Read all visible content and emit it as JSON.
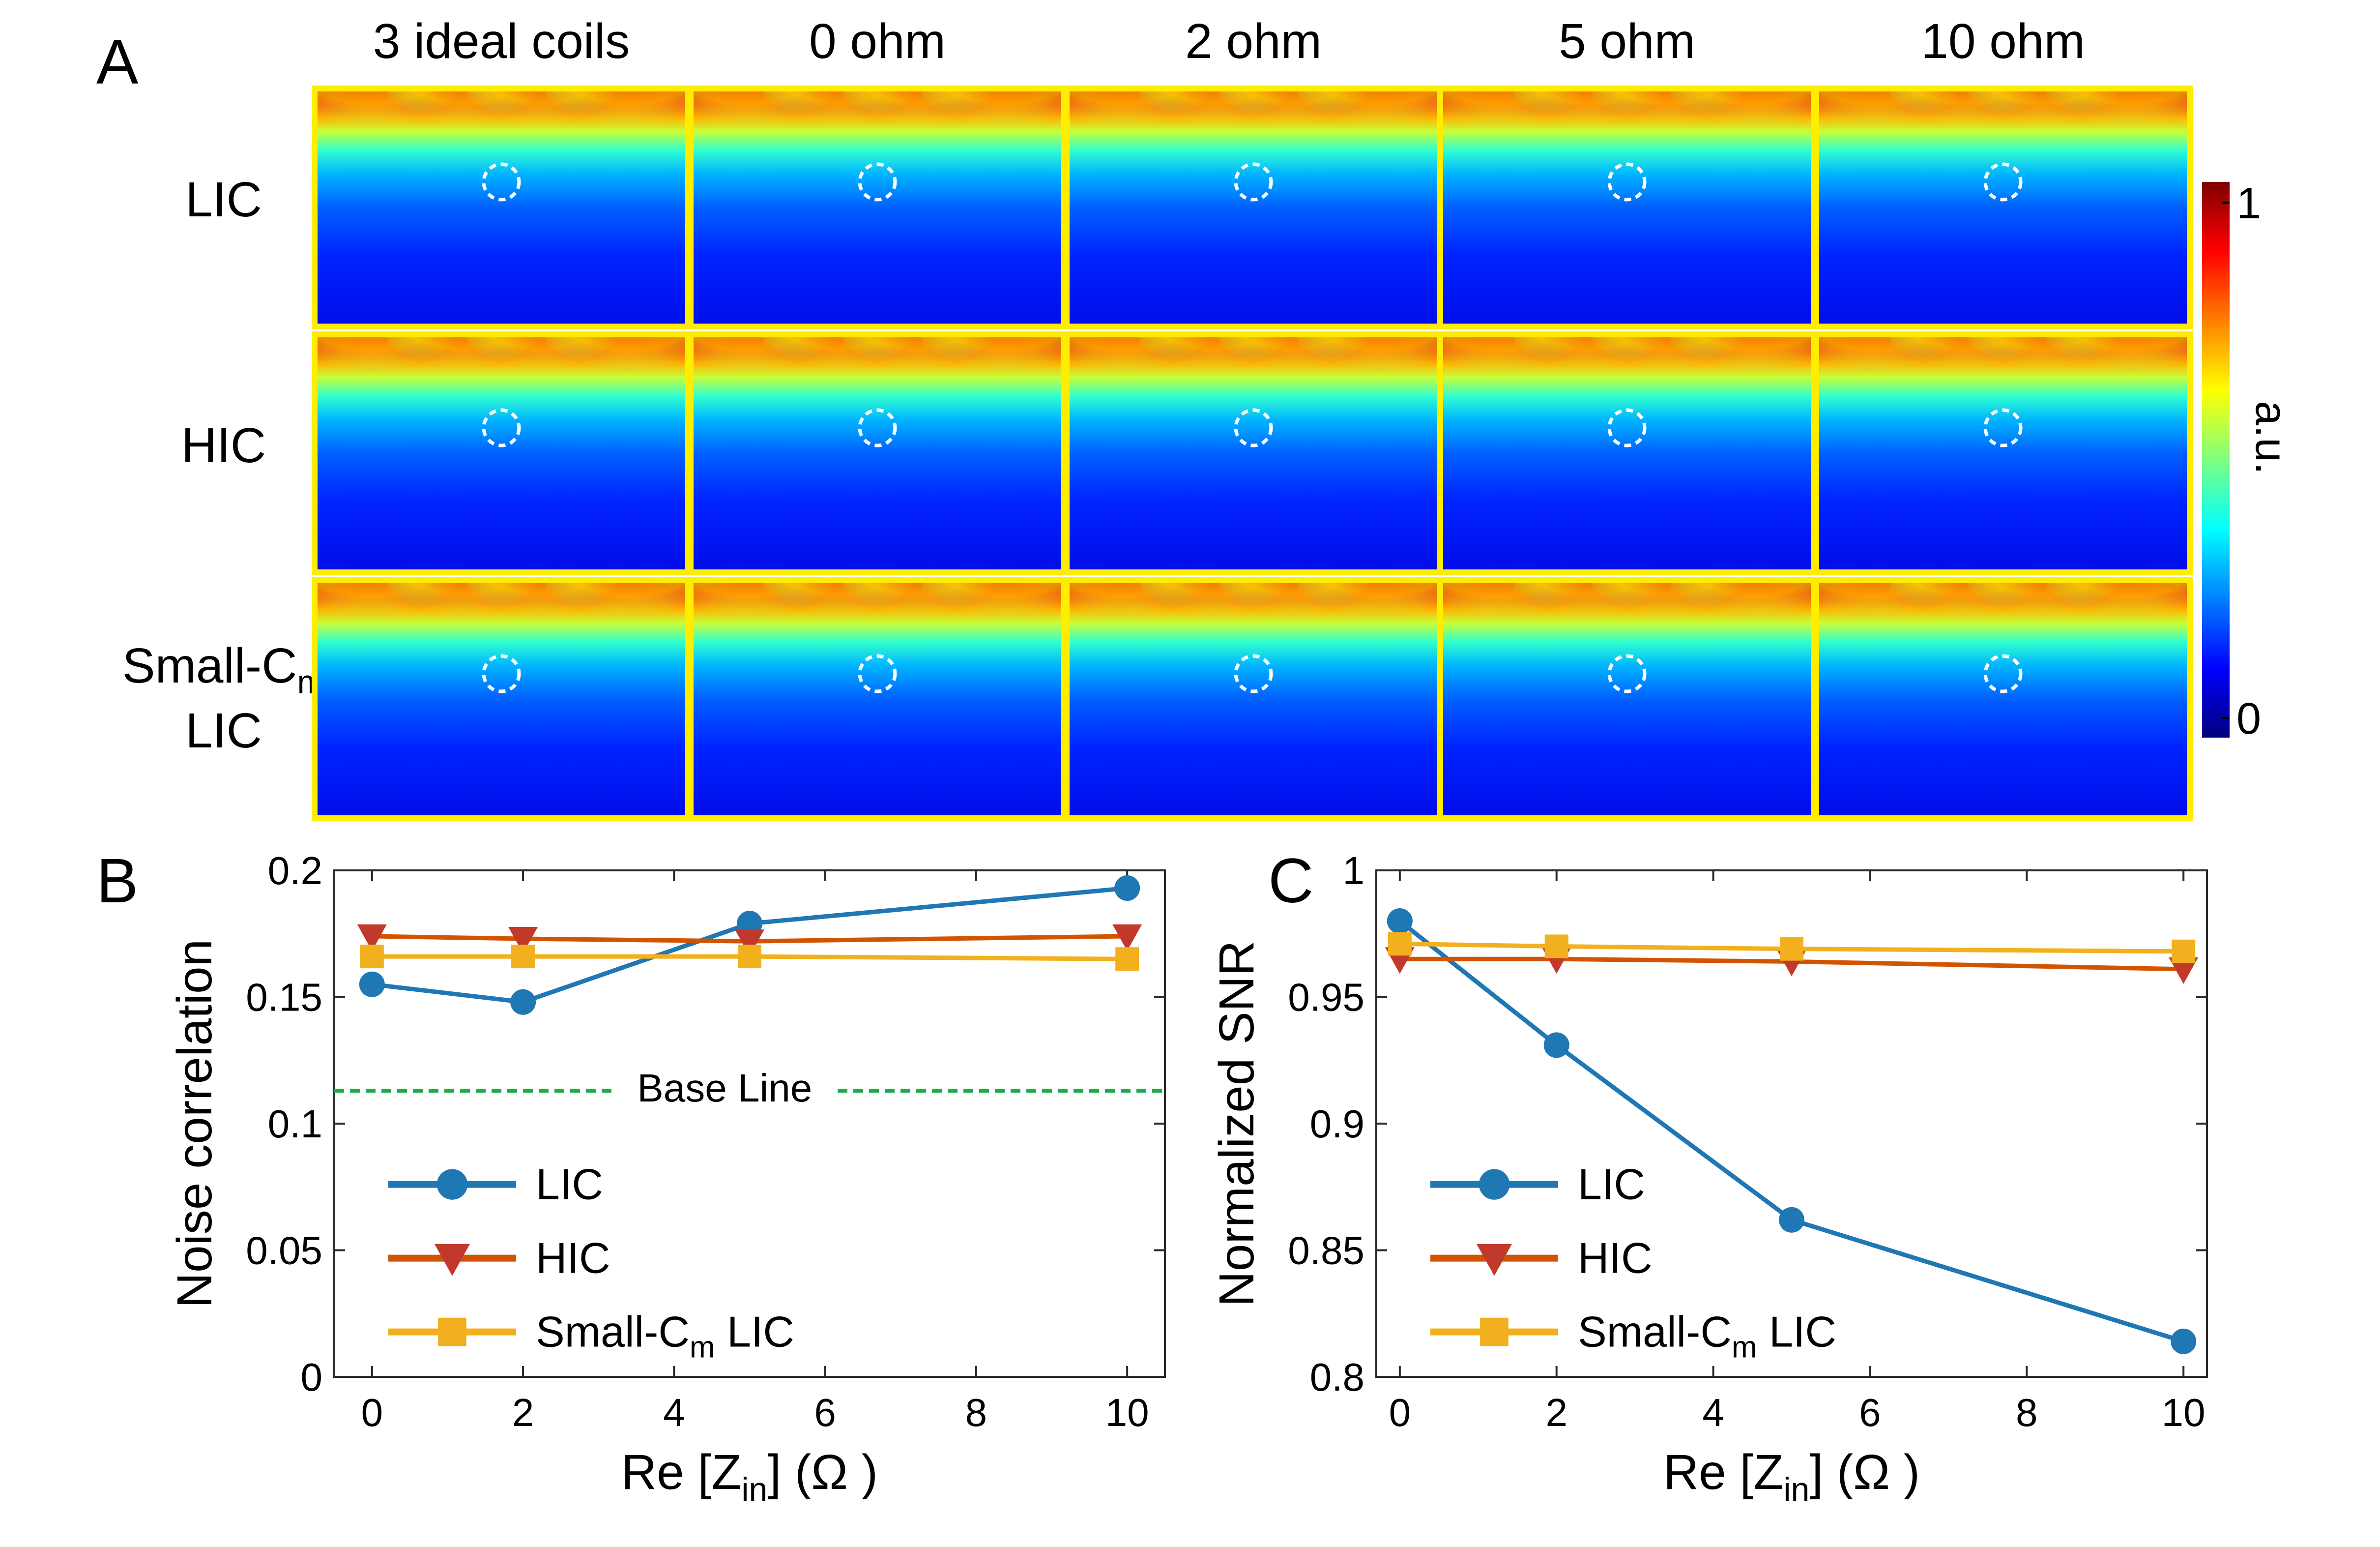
{
  "figure": {
    "panel_labels": [
      "A",
      "B",
      "C"
    ],
    "panel_a": {
      "column_titles": [
        "3 ideal coils",
        "0 ohm",
        "2 ohm",
        "5 ohm",
        "10 ohm"
      ],
      "row_titles": [
        {
          "main": "LIC",
          "sub": "",
          "line2": ""
        },
        {
          "main": "HIC",
          "sub": "",
          "line2": ""
        },
        {
          "main": "Small-C",
          "sub": "m",
          "line2": "LIC"
        }
      ],
      "colorbar": {
        "max_label": "1",
        "min_label": "0",
        "unit_label": "a.u.",
        "colormap": [
          "#00007f",
          "#0000ff",
          "#007fff",
          "#00ffff",
          "#7fff7f",
          "#ffff00",
          "#ff7f00",
          "#ff0000",
          "#7f0000"
        ]
      },
      "border_color": "#ffed00",
      "marker_color": "#ffffff"
    },
    "colors": {
      "LIC": "#1f77b4",
      "HIC": "#c0392b",
      "SmallCm": "#f2b01e",
      "baseline": "#21a84b",
      "HIC_line": "#d35400"
    }
  },
  "chart_data": [
    {
      "type": "line",
      "panel": "B",
      "x": [
        0,
        2,
        5,
        10
      ],
      "xlabel": {
        "prefix": "Re [Z",
        "sub": "in",
        "suffix": "] (Ω )"
      },
      "ylabel": "Noise correlation",
      "xlim": [
        -0.5,
        10.5
      ],
      "ylim": [
        0,
        0.2
      ],
      "xticks": [
        0,
        2,
        4,
        6,
        8,
        10
      ],
      "yticks": [
        0,
        0.05,
        0.1,
        0.15,
        0.2
      ],
      "ytick_labels": [
        "0",
        "0.05",
        "0.1",
        "0.15",
        "0.2"
      ],
      "series": [
        {
          "name": "LIC",
          "label_main": "LIC",
          "label_sub": "",
          "label_suffix": "",
          "marker": "circle",
          "values": [
            0.155,
            0.148,
            0.179,
            0.193
          ]
        },
        {
          "name": "HIC",
          "label_main": "HIC",
          "label_sub": "",
          "label_suffix": "",
          "marker": "triangle-down",
          "values": [
            0.174,
            0.173,
            0.172,
            0.174
          ]
        },
        {
          "name": "Small-Cm LIC",
          "label_main": "Small-C",
          "label_sub": "m",
          "label_suffix": " LIC",
          "marker": "square",
          "values": [
            0.166,
            0.166,
            0.166,
            0.165
          ]
        }
      ],
      "baseline": {
        "label": "Base Line",
        "value": 0.113
      },
      "legend": "bottom-left",
      "grid": false
    },
    {
      "type": "line",
      "panel": "C",
      "x": [
        0,
        2,
        5,
        10
      ],
      "xlabel": {
        "prefix": "Re [Z",
        "sub": "in",
        "suffix": "] (Ω )"
      },
      "ylabel": "Normalized SNR",
      "xlim": [
        -0.3,
        10.3
      ],
      "ylim": [
        0.8,
        1.0
      ],
      "xticks": [
        0,
        2,
        4,
        6,
        8,
        10
      ],
      "yticks": [
        0.8,
        0.85,
        0.9,
        0.95,
        1.0
      ],
      "ytick_labels": [
        "0.8",
        "0.85",
        "0.9",
        "0.95",
        "1"
      ],
      "series": [
        {
          "name": "LIC",
          "label_main": "LIC",
          "label_sub": "",
          "label_suffix": "",
          "marker": "circle",
          "values": [
            0.98,
            0.931,
            0.862,
            0.814
          ]
        },
        {
          "name": "HIC",
          "label_main": "HIC",
          "label_sub": "",
          "label_suffix": "",
          "marker": "triangle-down",
          "values": [
            0.965,
            0.965,
            0.964,
            0.961
          ]
        },
        {
          "name": "Small-Cm LIC",
          "label_main": "Small-C",
          "label_sub": "m",
          "label_suffix": " LIC",
          "marker": "square",
          "values": [
            0.971,
            0.97,
            0.969,
            0.968
          ]
        }
      ],
      "legend": "bottom-left",
      "grid": false
    }
  ]
}
